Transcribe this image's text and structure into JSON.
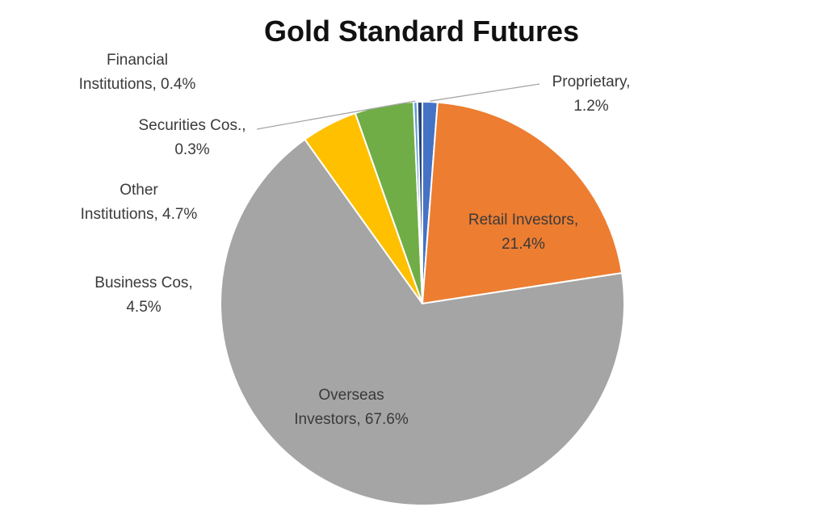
{
  "chart_data": {
    "type": "pie",
    "title": "Gold Standard Futures",
    "start_angle_deg": 0,
    "direction": "clockwise",
    "slices": [
      {
        "label": "Proprietary",
        "value": 1.2,
        "display": "1.2%",
        "color": "#4472c4"
      },
      {
        "label": "Retail Investors",
        "value": 21.4,
        "display": "21.4%",
        "color": "#ed7d31"
      },
      {
        "label": "Overseas Investors",
        "value": 67.6,
        "display": "67.6%",
        "color": "#a5a5a5"
      },
      {
        "label": "Business Cos",
        "value": 4.5,
        "display": "4.5%",
        "color": "#ffc000"
      },
      {
        "label": "Other Institutions",
        "value": 4.7,
        "display": "4.7%",
        "color": "#70ad47"
      },
      {
        "label": "Securities Cos.",
        "value": 0.3,
        "display": "0.3%",
        "color": "#5b9bd5"
      },
      {
        "label": "Financial Institutions",
        "value": 0.4,
        "display": "0.4%",
        "color": "#264478"
      }
    ],
    "legend": "none"
  }
}
